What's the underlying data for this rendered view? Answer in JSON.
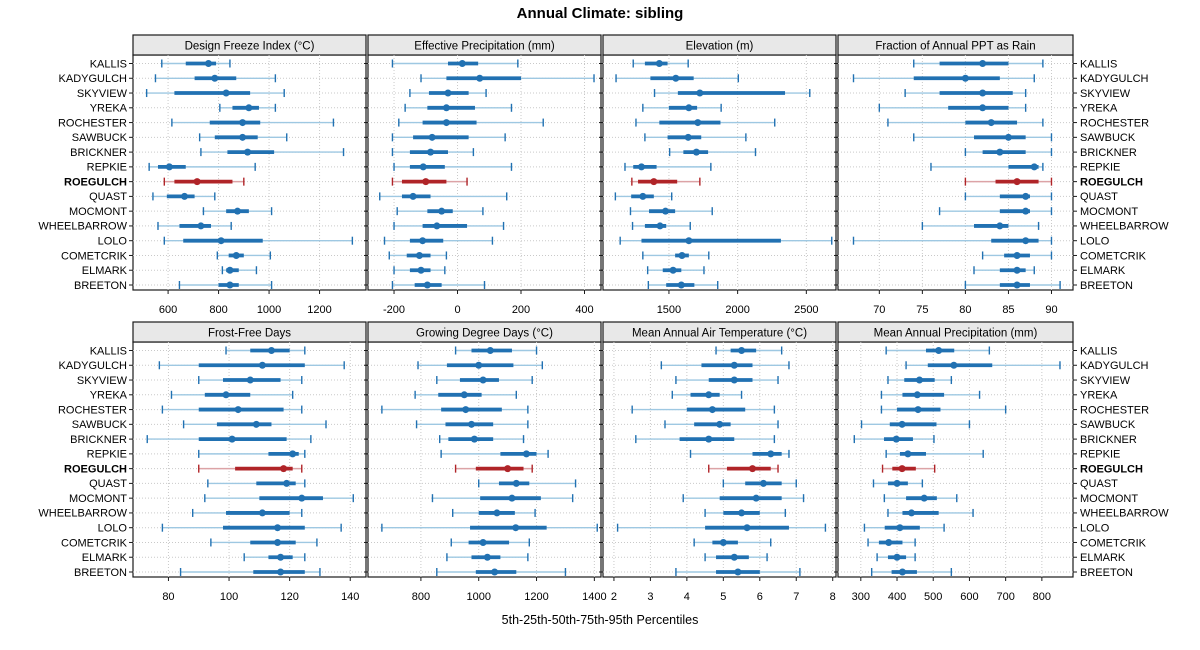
{
  "title": "Annual Climate: sibling",
  "xlabel": "5th-25th-50th-75th-95th Percentiles",
  "colors": {
    "series": "#2171b2",
    "series_light": "#9ec8e2",
    "highlight": "#b02428",
    "highlight_light": "#dca3a6",
    "grid": "#c9c9c9",
    "strip_bg": "#e8e8e8",
    "border": "#1a1a1a"
  },
  "chart_data": {
    "type": "dotplot-percentiles",
    "percentile_levels": [
      5,
      25,
      50,
      75,
      95
    ],
    "highlight_site": "ROEGULCH",
    "sites": [
      "KALLIS",
      "KADYGULCH",
      "SKYVIEW",
      "YREKA",
      "ROCHESTER",
      "SAWBUCK",
      "BRICKNER",
      "REPKIE",
      "ROEGULCH",
      "QUAST",
      "MOCMONT",
      "WHEELBARROW",
      "LOLO",
      "COMETCRIK",
      "ELMARK",
      "BREETON"
    ],
    "panels": [
      {
        "title": "Design Freeze Index (°C)",
        "grid_row": 0,
        "grid_col": 0,
        "ticks": [
          600,
          800,
          1000,
          1200
        ],
        "domain": [
          461,
          1384
        ],
        "values": [
          [
            575,
            670,
            760,
            790,
            845
          ],
          [
            550,
            705,
            785,
            870,
            1025
          ],
          [
            515,
            625,
            830,
            925,
            1060
          ],
          [
            805,
            855,
            920,
            960,
            1025
          ],
          [
            615,
            765,
            895,
            965,
            1255
          ],
          [
            725,
            785,
            895,
            955,
            1070
          ],
          [
            730,
            835,
            915,
            1020,
            1295
          ],
          [
            525,
            560,
            605,
            670,
            945
          ],
          [
            585,
            625,
            715,
            855,
            900
          ],
          [
            540,
            595,
            665,
            705,
            785
          ],
          [
            740,
            830,
            875,
            920,
            1010
          ],
          [
            560,
            645,
            730,
            770,
            850
          ],
          [
            585,
            660,
            810,
            975,
            1330
          ],
          [
            795,
            840,
            870,
            900,
            1005
          ],
          [
            815,
            830,
            845,
            880,
            950
          ],
          [
            645,
            800,
            845,
            880,
            1010
          ]
        ]
      },
      {
        "title": "Effective Precipitation (mm)",
        "grid_row": 0,
        "grid_col": 1,
        "ticks": [
          -200,
          0,
          200,
          400
        ],
        "domain": [
          -282,
          452
        ],
        "values": [
          [
            -205,
            -30,
            15,
            65,
            190
          ],
          [
            -115,
            -35,
            70,
            200,
            430
          ],
          [
            -150,
            -90,
            -30,
            35,
            90
          ],
          [
            -165,
            -95,
            -35,
            55,
            170
          ],
          [
            -185,
            -110,
            -35,
            60,
            270
          ],
          [
            -205,
            -140,
            -80,
            35,
            150
          ],
          [
            -205,
            -150,
            -85,
            -30,
            50
          ],
          [
            -200,
            -150,
            -108,
            -40,
            170
          ],
          [
            -205,
            -175,
            -100,
            -35,
            30
          ],
          [
            -245,
            -175,
            -140,
            -85,
            155
          ],
          [
            -190,
            -95,
            -50,
            -15,
            80
          ],
          [
            -200,
            -110,
            -65,
            30,
            145
          ],
          [
            -230,
            -150,
            -110,
            -45,
            110
          ],
          [
            -215,
            -160,
            -120,
            -85,
            -35
          ],
          [
            -200,
            -150,
            -115,
            -85,
            -40
          ],
          [
            -205,
            -135,
            -95,
            -50,
            85
          ]
        ]
      },
      {
        "title": "Elevation (m)",
        "grid_row": 0,
        "grid_col": 2,
        "ticks": [
          1500,
          2000,
          2500
        ],
        "domain": [
          1020,
          2716
        ],
        "values": [
          [
            1240,
            1325,
            1430,
            1490,
            1640
          ],
          [
            1115,
            1365,
            1550,
            1680,
            2005
          ],
          [
            1395,
            1565,
            1725,
            2345,
            2525
          ],
          [
            1310,
            1500,
            1645,
            1705,
            1880
          ],
          [
            1260,
            1430,
            1710,
            1875,
            2270
          ],
          [
            1325,
            1490,
            1640,
            1735,
            2060
          ],
          [
            1505,
            1605,
            1700,
            1785,
            2130
          ],
          [
            1180,
            1240,
            1300,
            1410,
            1805
          ],
          [
            1230,
            1275,
            1390,
            1560,
            1725
          ],
          [
            1110,
            1225,
            1310,
            1390,
            1520
          ],
          [
            1220,
            1355,
            1475,
            1545,
            1815
          ],
          [
            1235,
            1325,
            1435,
            1480,
            1655
          ],
          [
            1145,
            1300,
            1645,
            2315,
            2685
          ],
          [
            1310,
            1545,
            1595,
            1645,
            1790
          ],
          [
            1345,
            1455,
            1530,
            1590,
            1755
          ],
          [
            1350,
            1480,
            1590,
            1685,
            1855
          ]
        ]
      },
      {
        "title": "Fraction of Annual PPT as Rain",
        "grid_row": 0,
        "grid_col": 3,
        "ticks": [
          70,
          75,
          80,
          85,
          90
        ],
        "domain": [
          65.2,
          92.5
        ],
        "values": [
          [
            74,
            77,
            82,
            85,
            89
          ],
          [
            67,
            74,
            80,
            84,
            88
          ],
          [
            73,
            77,
            82,
            85.5,
            87
          ],
          [
            70,
            78,
            82,
            85,
            87
          ],
          [
            71,
            80,
            83,
            86,
            89
          ],
          [
            74,
            81,
            85,
            87,
            90
          ],
          [
            80,
            82,
            84,
            87,
            90
          ],
          [
            76,
            85,
            88,
            88.5,
            89
          ],
          [
            80,
            83.5,
            86,
            88.5,
            90
          ],
          [
            80,
            84,
            87,
            87.5,
            90
          ],
          [
            77,
            84,
            87,
            87.5,
            90
          ],
          [
            75,
            81,
            84,
            85,
            88.5
          ],
          [
            67,
            83,
            87,
            88.5,
            90
          ],
          [
            82,
            84.5,
            86,
            87.5,
            90
          ],
          [
            81,
            84,
            86,
            87,
            88
          ],
          [
            80,
            84,
            86,
            87.5,
            91
          ]
        ]
      },
      {
        "title": "Frost-Free Days",
        "grid_row": 1,
        "grid_col": 0,
        "ticks": [
          80,
          100,
          120,
          140
        ],
        "domain": [
          68.3,
          145.2
        ],
        "values": [
          [
            99,
            107,
            114,
            120,
            125
          ],
          [
            77,
            90,
            111,
            125,
            138
          ],
          [
            90,
            98,
            107,
            117,
            124
          ],
          [
            81,
            92,
            99,
            107,
            121
          ],
          [
            78,
            90,
            103,
            118,
            124
          ],
          [
            85,
            96,
            109,
            114,
            132
          ],
          [
            73,
            90,
            101,
            119,
            127
          ],
          [
            90,
            113,
            121,
            123,
            125
          ],
          [
            90,
            102,
            118,
            121,
            124
          ],
          [
            93,
            109,
            119,
            122,
            125
          ],
          [
            92,
            110,
            124,
            131,
            141
          ],
          [
            88,
            99,
            111,
            120,
            124
          ],
          [
            78,
            98,
            116,
            125,
            137
          ],
          [
            94,
            107,
            116,
            122,
            129
          ],
          [
            105,
            113,
            117,
            121,
            125
          ],
          [
            84,
            108,
            117,
            125,
            130
          ]
        ]
      },
      {
        "title": "Growing Degree Days (°C)",
        "grid_row": 1,
        "grid_col": 1,
        "ticks": [
          800,
          1000,
          1200,
          1400
        ],
        "domain": [
          617,
          1423
        ],
        "values": [
          [
            920,
            975,
            1040,
            1115,
            1200
          ],
          [
            790,
            890,
            1000,
            1120,
            1220
          ],
          [
            855,
            935,
            1015,
            1070,
            1185
          ],
          [
            780,
            860,
            950,
            1010,
            1130
          ],
          [
            665,
            870,
            955,
            1080,
            1170
          ],
          [
            785,
            885,
            975,
            1050,
            1170
          ],
          [
            865,
            895,
            985,
            1050,
            1155
          ],
          [
            870,
            1075,
            1165,
            1200,
            1240
          ],
          [
            920,
            990,
            1100,
            1155,
            1185
          ],
          [
            1000,
            1070,
            1130,
            1175,
            1335
          ],
          [
            840,
            1005,
            1115,
            1215,
            1325
          ],
          [
            910,
            1000,
            1063,
            1125,
            1195
          ],
          [
            665,
            970,
            1128,
            1235,
            1410
          ],
          [
            905,
            965,
            1015,
            1105,
            1175
          ],
          [
            890,
            975,
            1030,
            1075,
            1170
          ],
          [
            855,
            990,
            1055,
            1130,
            1300
          ]
        ]
      },
      {
        "title": "Mean Annual Air Temperature (°C)",
        "grid_row": 1,
        "grid_col": 2,
        "ticks": [
          2,
          3,
          4,
          5,
          6,
          7,
          8
        ],
        "domain": [
          1.7,
          8.09
        ],
        "values": [
          [
            4.8,
            5.2,
            5.5,
            5.9,
            6.6
          ],
          [
            3.3,
            4.4,
            5.3,
            5.8,
            6.8
          ],
          [
            3.7,
            4.6,
            5.3,
            5.8,
            6.5
          ],
          [
            3.6,
            4.1,
            4.6,
            4.9,
            5.5
          ],
          [
            2.5,
            4.0,
            4.7,
            5.6,
            6.4
          ],
          [
            3.4,
            4.2,
            4.9,
            5.2,
            6.5
          ],
          [
            2.6,
            3.8,
            4.6,
            5.3,
            6.4
          ],
          [
            4.1,
            5.8,
            6.3,
            6.6,
            6.8
          ],
          [
            4.6,
            5.1,
            5.8,
            6.3,
            6.5
          ],
          [
            5.0,
            5.6,
            6.1,
            6.6,
            7.0
          ],
          [
            3.9,
            4.9,
            5.9,
            6.6,
            7.2
          ],
          [
            4.5,
            5.0,
            5.5,
            6.0,
            6.7
          ],
          [
            2.1,
            4.5,
            5.65,
            6.8,
            7.8
          ],
          [
            4.2,
            4.7,
            5.0,
            5.4,
            6.3
          ],
          [
            4.5,
            4.8,
            5.3,
            5.7,
            6.2
          ],
          [
            3.7,
            4.8,
            5.4,
            6.0,
            7.1
          ]
        ]
      },
      {
        "title": "Mean Annual Precipitation (mm)",
        "grid_row": 1,
        "grid_col": 3,
        "ticks": [
          300,
          400,
          500,
          600,
          700,
          800
        ],
        "domain": [
          237,
          886
        ],
        "values": [
          [
            370,
            480,
            515,
            558,
            655
          ],
          [
            425,
            485,
            557,
            663,
            850
          ],
          [
            375,
            420,
            462,
            504,
            550
          ],
          [
            357,
            415,
            456,
            530,
            628
          ],
          [
            357,
            400,
            458,
            520,
            700
          ],
          [
            302,
            380,
            414,
            509,
            600
          ],
          [
            282,
            364,
            398,
            444,
            502
          ],
          [
            370,
            408,
            430,
            480,
            638
          ],
          [
            360,
            387,
            414,
            452,
            504
          ],
          [
            335,
            375,
            400,
            430,
            470
          ],
          [
            365,
            425,
            475,
            510,
            565
          ],
          [
            375,
            415,
            440,
            515,
            610
          ],
          [
            310,
            366,
            408,
            463,
            530
          ],
          [
            320,
            350,
            377,
            415,
            450
          ],
          [
            345,
            375,
            400,
            425,
            450
          ],
          [
            330,
            385,
            415,
            455,
            550
          ]
        ]
      }
    ]
  }
}
